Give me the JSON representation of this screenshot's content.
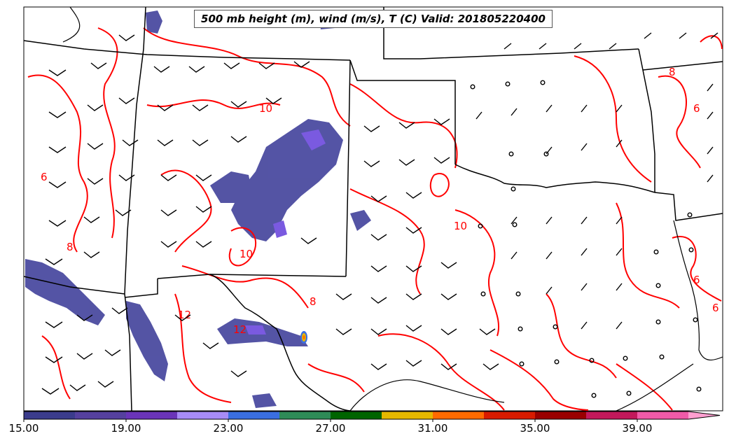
{
  "title": "500 mb height (m), wind (m/s), T (C) Valid: 201805220400",
  "colorbar": {
    "ticks": [
      "15.00",
      "19.00",
      "23.00",
      "27.00",
      "31.00",
      "35.00",
      "39.00"
    ],
    "colors": [
      "#3b3c8c",
      "#55409e",
      "#6a34b8",
      "#a78bf6",
      "#3a6ee0",
      "#2e8b57",
      "#006400",
      "#e6b800",
      "#ff6a00",
      "#d81b00",
      "#990000",
      "#c2185b",
      "#f05aa8",
      "#ff9fd0"
    ]
  },
  "contour_labels": [
    "6",
    "8",
    "10",
    "10",
    "12",
    "12",
    "8",
    "6",
    "6",
    "6",
    "10",
    "8"
  ],
  "palette": {
    "contour": "#ff0000",
    "border": "#000000",
    "precip": "#4b4ba0"
  }
}
